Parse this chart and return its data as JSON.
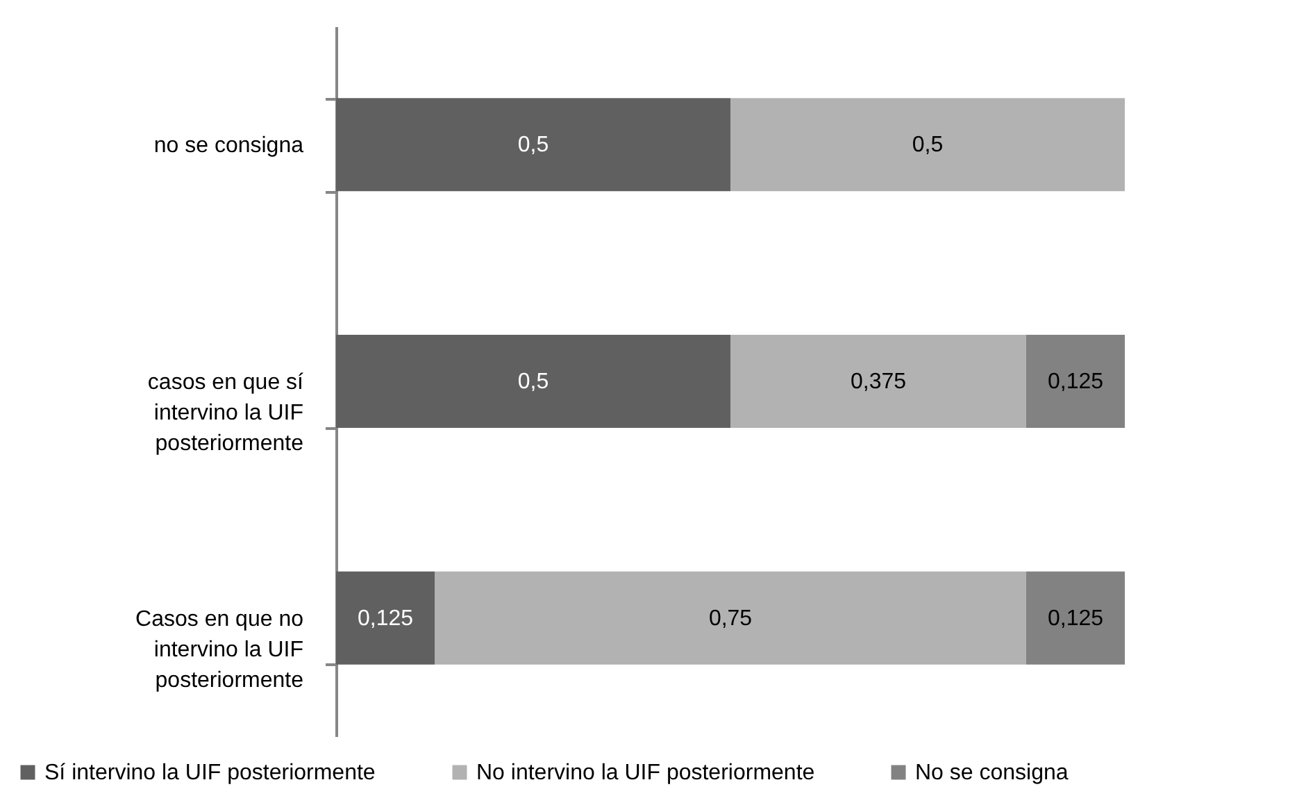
{
  "chart_data": {
    "type": "bar",
    "orientation": "horizontal",
    "stacked": true,
    "categories": [
      "no se consigna",
      "casos en que sí intervino la UIF posteriormente",
      "Casos en que no intervino la UIF posteriormente"
    ],
    "series": [
      {
        "name": "Sí intervino la UIF posteriormente",
        "color": "#606060",
        "values": [
          0.5,
          0.5,
          0.125
        ],
        "value_labels": [
          "0,5",
          "0,5",
          "0,125"
        ]
      },
      {
        "name": "No intervino la UIF posteriormente",
        "color": "#b2b2b2",
        "values": [
          0.5,
          0.375,
          0.75
        ],
        "value_labels": [
          "0,5",
          "0,375",
          "0,75"
        ]
      },
      {
        "name": "No se consigna",
        "color": "#828282",
        "values": [
          null,
          0.125,
          0.125
        ],
        "value_labels": [
          null,
          "0,125",
          "0,125"
        ]
      }
    ],
    "xlim": [
      0,
      1
    ],
    "tick_labels": "y",
    "legend": "bottom"
  }
}
